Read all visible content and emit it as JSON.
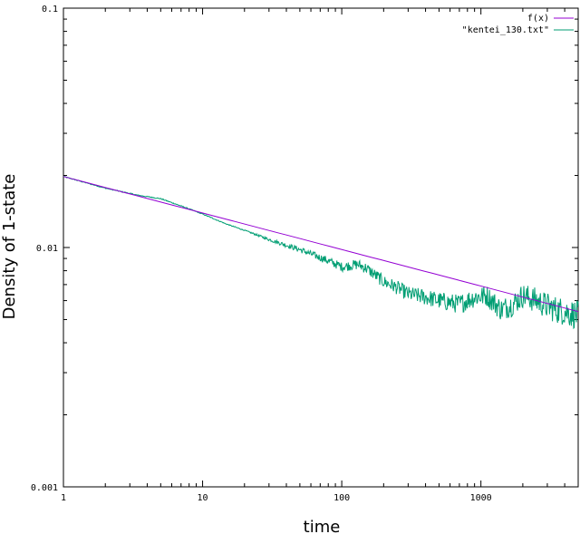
{
  "chart_data": {
    "type": "line",
    "title": "",
    "xlabel": "time",
    "ylabel": "Density of 1-state",
    "x_scale": "log",
    "y_scale": "log",
    "xlim": [
      1,
      5000
    ],
    "ylim": [
      0.001,
      0.1
    ],
    "x_tick_labels": [
      "1",
      "10",
      "100",
      "1000"
    ],
    "x_tick_values": [
      1,
      10,
      100,
      1000
    ],
    "y_tick_labels": [
      "0.001",
      "0.01",
      "0.1"
    ],
    "y_tick_values": [
      0.001,
      0.01,
      0.1
    ],
    "grid": false,
    "legend_position": "top-right",
    "series": [
      {
        "name": "f(x)",
        "color": "#9400d3",
        "style": "smooth",
        "x": [
          1,
          5000
        ],
        "y": [
          0.0198,
          0.0054
        ]
      },
      {
        "name": "\"kentei_130.txt\"",
        "color": "#009e73",
        "style": "noisy",
        "x": [
          1,
          2,
          3.5,
          5,
          8,
          10,
          15,
          20,
          30,
          50,
          80,
          100,
          130,
          150,
          200,
          250,
          300,
          400,
          500,
          700,
          900,
          1100,
          1400,
          1700,
          2000,
          2500,
          3000,
          3500,
          4000,
          4500,
          5000
        ],
        "y": [
          0.0198,
          0.0177,
          0.0165,
          0.016,
          0.0145,
          0.0138,
          0.0125,
          0.0118,
          0.0108,
          0.0098,
          0.0088,
          0.0083,
          0.0085,
          0.0082,
          0.0072,
          0.0068,
          0.0064,
          0.0062,
          0.006,
          0.0058,
          0.0062,
          0.0063,
          0.0055,
          0.0058,
          0.0063,
          0.006,
          0.0057,
          0.0055,
          0.0054,
          0.0053,
          0.0052
        ]
      }
    ]
  }
}
